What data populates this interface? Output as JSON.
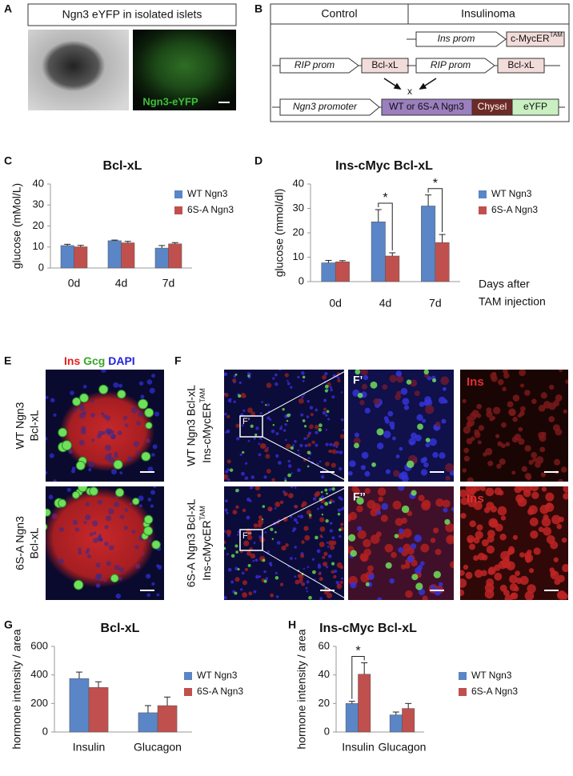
{
  "figure": {
    "panel_labels": [
      "A",
      "B",
      "C",
      "D",
      "E",
      "F",
      "G",
      "H"
    ],
    "panel_a": {
      "title": "Ngn3 eYFP in isolated islets",
      "image_label": "Ngn3-eYFP"
    },
    "panel_b": {
      "columns": [
        "Control",
        "Insulinoma"
      ],
      "ins_prom": "Ins prom",
      "cmyc": "c-MycER",
      "cmyc_sup": "TAM",
      "rip_prom": "RIP prom",
      "bclxl": "Bcl-xL",
      "cross": "x",
      "ngn3_promoter": "Ngn3 promoter",
      "ngn3": "WT or 6S-A Ngn3",
      "chysel": "Chysel",
      "eyfp": "eYFP"
    },
    "panel_e": {
      "stains": [
        "Ins",
        "Gcg",
        "DAPI"
      ],
      "rows": [
        [
          "WT Ngn3",
          "Bcl-xL"
        ],
        [
          "6S-A Ngn3",
          "Bcl-xL"
        ]
      ]
    },
    "panel_f": {
      "rows": [
        {
          "line1": "WT Ngn3 Bcl-xL",
          "line2": "Ins-cMycER",
          "sup": "TAM",
          "inset": "F’"
        },
        {
          "line1": "6S-A Ngn3 Bcl-xL",
          "line2": "Ins-cMycER",
          "sup": "TAM",
          "inset": "F’’"
        }
      ],
      "stain": "Ins"
    }
  },
  "chart_data": [
    {
      "type": "bar",
      "title": "Bcl-xL",
      "ylabel": "glucose (mMol/L)",
      "categories": [
        "0d",
        "4d",
        "7d"
      ],
      "series": [
        {
          "name": "WT Ngn3",
          "color": "#5a85c6",
          "values": [
            10.7,
            13,
            9.5
          ],
          "errors": [
            0.6,
            0.3,
            1.2
          ]
        },
        {
          "name": "6S-A Ngn3",
          "color": "#c0504d",
          "values": [
            10.1,
            12,
            11.5
          ],
          "errors": [
            0.7,
            0.7,
            0.6
          ]
        }
      ],
      "ylim": [
        0,
        40
      ],
      "yticks": [
        0,
        10,
        20,
        30,
        40
      ],
      "legend": "right"
    },
    {
      "type": "bar",
      "title": "Ins-cMyc Bcl-xL",
      "ylabel": "glucose (mmol/dl)",
      "categories": [
        "0d",
        "4d",
        "7d"
      ],
      "xlabel_lines": [
        "Days after",
        "TAM injection"
      ],
      "series": [
        {
          "name": "WT Ngn3",
          "color": "#5a85c6",
          "values": [
            7.7,
            24.5,
            31
          ],
          "errors": [
            1,
            5,
            4.5
          ]
        },
        {
          "name": "6S-A Ngn3",
          "color": "#c0504d",
          "values": [
            8.1,
            10.5,
            16
          ],
          "errors": [
            0.5,
            1.3,
            3.3
          ]
        }
      ],
      "annotations": [
        "*",
        "*"
      ],
      "ylim": [
        0,
        40
      ],
      "yticks": [
        0,
        10,
        20,
        30,
        40
      ],
      "legend": "right"
    },
    {
      "type": "bar",
      "title": "Bcl-xL",
      "ylabel": "hormone intensity / area",
      "categories": [
        "Insulin",
        "Glucagon"
      ],
      "series": [
        {
          "name": "WT Ngn3",
          "color": "#5a85c6",
          "values": [
            375,
            135
          ],
          "errors": [
            45,
            50
          ]
        },
        {
          "name": "6S-A Ngn3",
          "color": "#c0504d",
          "values": [
            312,
            185
          ],
          "errors": [
            40,
            60
          ]
        }
      ],
      "ylim": [
        0,
        600
      ],
      "yticks": [
        0,
        200,
        400,
        600
      ],
      "legend": "right"
    },
    {
      "type": "bar",
      "title": "Ins-cMyc Bcl-xL",
      "ylabel": "hormone intensity / area",
      "categories": [
        "Insulin",
        "Glucagon"
      ],
      "series": [
        {
          "name": "WT Ngn3",
          "color": "#5a85c6",
          "values": [
            20,
            12
          ],
          "errors": [
            1.5,
            2
          ]
        },
        {
          "name": "6S-A Ngn3",
          "color": "#c0504d",
          "values": [
            40.5,
            16.5
          ],
          "errors": [
            8,
            3.5
          ]
        }
      ],
      "annotations": [
        "*"
      ],
      "ylim": [
        0,
        60
      ],
      "yticks": [
        0,
        20,
        40,
        60
      ],
      "legend": "right"
    }
  ]
}
